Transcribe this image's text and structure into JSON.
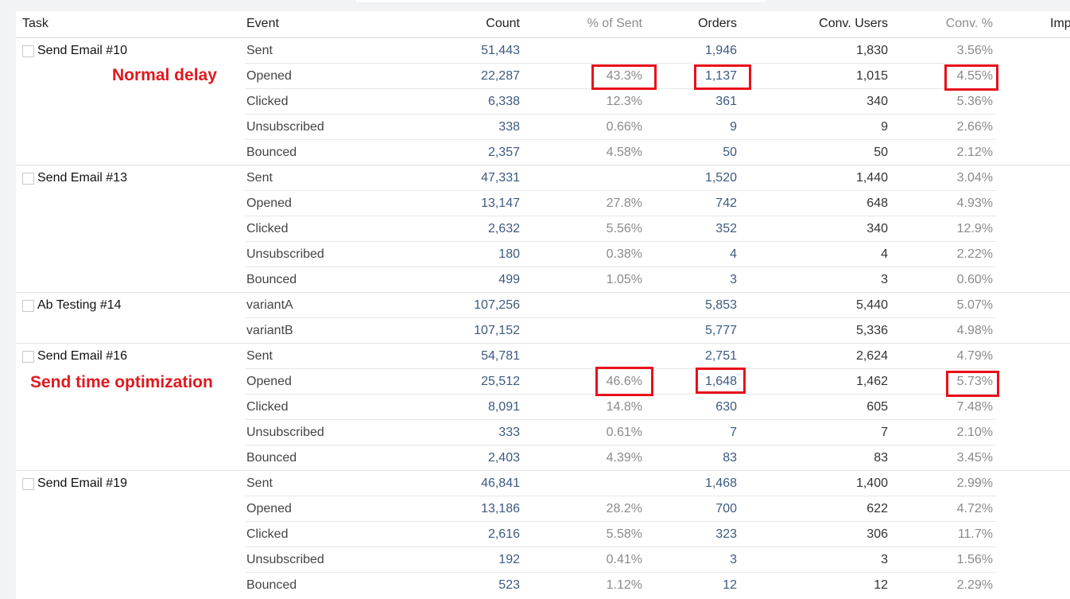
{
  "columns": {
    "task": "Task",
    "event": "Event",
    "count": "Count",
    "pct_sent": "% of Sent",
    "orders": "Orders",
    "conv_users": "Conv. Users",
    "conv_pct": "Conv. %",
    "imp": "Imp"
  },
  "annotations": {
    "normal_delay": "Normal delay",
    "send_time_optimization": "Send time optimization"
  },
  "highlight_color": "#e8101a",
  "tasks": [
    {
      "name": "Send Email #10",
      "rows": [
        {
          "event": "Sent",
          "count": "51,443",
          "pct": "",
          "orders": "1,946",
          "users": "1,830",
          "conv": "3.56%"
        },
        {
          "event": "Opened",
          "count": "22,287",
          "pct": "43.3%",
          "orders": "1,137",
          "users": "1,015",
          "conv": "4.55%"
        },
        {
          "event": "Clicked",
          "count": "6,338",
          "pct": "12.3%",
          "orders": "361",
          "users": "340",
          "conv": "5.36%"
        },
        {
          "event": "Unsubscribed",
          "count": "338",
          "pct": "0.66%",
          "orders": "9",
          "users": "9",
          "conv": "2.66%"
        },
        {
          "event": "Bounced",
          "count": "2,357",
          "pct": "4.58%",
          "orders": "50",
          "users": "50",
          "conv": "2.12%"
        }
      ]
    },
    {
      "name": "Send Email #13",
      "rows": [
        {
          "event": "Sent",
          "count": "47,331",
          "pct": "",
          "orders": "1,520",
          "users": "1,440",
          "conv": "3.04%"
        },
        {
          "event": "Opened",
          "count": "13,147",
          "pct": "27.8%",
          "orders": "742",
          "users": "648",
          "conv": "4.93%"
        },
        {
          "event": "Clicked",
          "count": "2,632",
          "pct": "5.56%",
          "orders": "352",
          "users": "340",
          "conv": "12.9%"
        },
        {
          "event": "Unsubscribed",
          "count": "180",
          "pct": "0.38%",
          "orders": "4",
          "users": "4",
          "conv": "2.22%"
        },
        {
          "event": "Bounced",
          "count": "499",
          "pct": "1.05%",
          "orders": "3",
          "users": "3",
          "conv": "0.60%"
        }
      ]
    },
    {
      "name": "Ab Testing #14",
      "rows": [
        {
          "event": "variantA",
          "count": "107,256",
          "pct": "",
          "orders": "5,853",
          "users": "5,440",
          "conv": "5.07%"
        },
        {
          "event": "variantB",
          "count": "107,152",
          "pct": "",
          "orders": "5,777",
          "users": "5,336",
          "conv": "4.98%"
        }
      ]
    },
    {
      "name": "Send Email #16",
      "rows": [
        {
          "event": "Sent",
          "count": "54,781",
          "pct": "",
          "orders": "2,751",
          "users": "2,624",
          "conv": "4.79%"
        },
        {
          "event": "Opened",
          "count": "25,512",
          "pct": "46.6%",
          "orders": "1,648",
          "users": "1,462",
          "conv": "5.73%"
        },
        {
          "event": "Clicked",
          "count": "8,091",
          "pct": "14.8%",
          "orders": "630",
          "users": "605",
          "conv": "7.48%"
        },
        {
          "event": "Unsubscribed",
          "count": "333",
          "pct": "0.61%",
          "orders": "7",
          "users": "7",
          "conv": "2.10%"
        },
        {
          "event": "Bounced",
          "count": "2,403",
          "pct": "4.39%",
          "orders": "83",
          "users": "83",
          "conv": "3.45%"
        }
      ]
    },
    {
      "name": "Send Email #19",
      "rows": [
        {
          "event": "Sent",
          "count": "46,841",
          "pct": "",
          "orders": "1,468",
          "users": "1,400",
          "conv": "2.99%"
        },
        {
          "event": "Opened",
          "count": "13,186",
          "pct": "28.2%",
          "orders": "700",
          "users": "622",
          "conv": "4.72%"
        },
        {
          "event": "Clicked",
          "count": "2,616",
          "pct": "5.58%",
          "orders": "323",
          "users": "306",
          "conv": "11.7%"
        },
        {
          "event": "Unsubscribed",
          "count": "192",
          "pct": "0.41%",
          "orders": "3",
          "users": "3",
          "conv": "1.56%"
        },
        {
          "event": "Bounced",
          "count": "523",
          "pct": "1.12%",
          "orders": "12",
          "users": "12",
          "conv": "2.29%"
        }
      ]
    }
  ]
}
